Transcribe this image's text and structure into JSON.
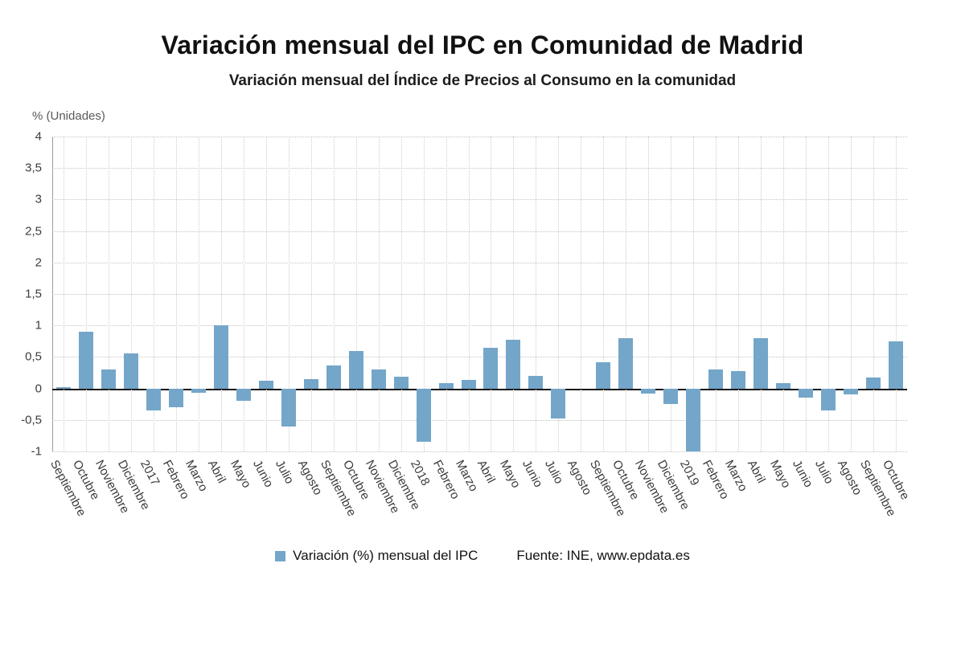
{
  "title": "Variación mensual del IPC en Comunidad de Madrid",
  "subtitle": "Variación mensual del Índice de Precios al Consumo en la comunidad",
  "y_axis_unit_label": "% (Unidades)",
  "legend": {
    "series_label": "Variación (%) mensual del IPC",
    "source": "Fuente: INE, www.epdata.es"
  },
  "colors": {
    "bar": "#74a6c9",
    "grid": "#c8c8c8",
    "zero_line": "#1a1a1a"
  },
  "chart_data": {
    "type": "bar",
    "title": "Variación mensual del IPC en Comunidad de Madrid",
    "subtitle": "Variación mensual del Índice de Precios al Consumo en la comunidad",
    "ylabel": "% (Unidades)",
    "xlabel": "",
    "ylim": [
      -1,
      4
    ],
    "grid": true,
    "legend_position": "bottom",
    "yticks": [
      {
        "value": 4,
        "label": "4"
      },
      {
        "value": 3.5,
        "label": "3,5"
      },
      {
        "value": 3,
        "label": "3"
      },
      {
        "value": 2.5,
        "label": "2,5"
      },
      {
        "value": 2,
        "label": "2"
      },
      {
        "value": 1.5,
        "label": "1,5"
      },
      {
        "value": 1,
        "label": "1"
      },
      {
        "value": 0.5,
        "label": "0,5"
      },
      {
        "value": 0,
        "label": "0"
      },
      {
        "value": -0.5,
        "label": "-0,5"
      },
      {
        "value": -1,
        "label": "-1"
      }
    ],
    "categories": [
      "Septiembre",
      "Octubre",
      "Noviembre",
      "Diciembre",
      "2017",
      "Febrero",
      "Marzo",
      "Abril",
      "Mayo",
      "Junio",
      "Julio",
      "Agosto",
      "Septiembre",
      "Octubre",
      "Noviembre",
      "Diciembre",
      "2018",
      "Febrero",
      "Marzo",
      "Abril",
      "Mayo",
      "Junio",
      "Julio",
      "Agosto",
      "Septiembre",
      "Octubre",
      "Noviembre",
      "Diciembre",
      "2019",
      "Febrero",
      "Marzo",
      "Abril",
      "Mayo",
      "Junio",
      "Julio",
      "Agosto",
      "Septiembre",
      "Octubre"
    ],
    "series": [
      {
        "name": "Variación (%) mensual del IPC",
        "values": [
          0.02,
          0.9,
          0.3,
          0.55,
          -0.35,
          -0.3,
          -0.07,
          1.0,
          -0.2,
          0.12,
          -0.6,
          0.15,
          0.36,
          0.6,
          0.3,
          0.18,
          -0.85,
          0.08,
          0.13,
          0.64,
          0.77,
          0.2,
          -0.48,
          0.0,
          0.42,
          0.8,
          -0.08,
          -0.25,
          -1.0,
          0.3,
          0.27,
          0.8,
          0.08,
          -0.15,
          -0.35,
          -0.1,
          0.17,
          0.75
        ]
      }
    ]
  }
}
